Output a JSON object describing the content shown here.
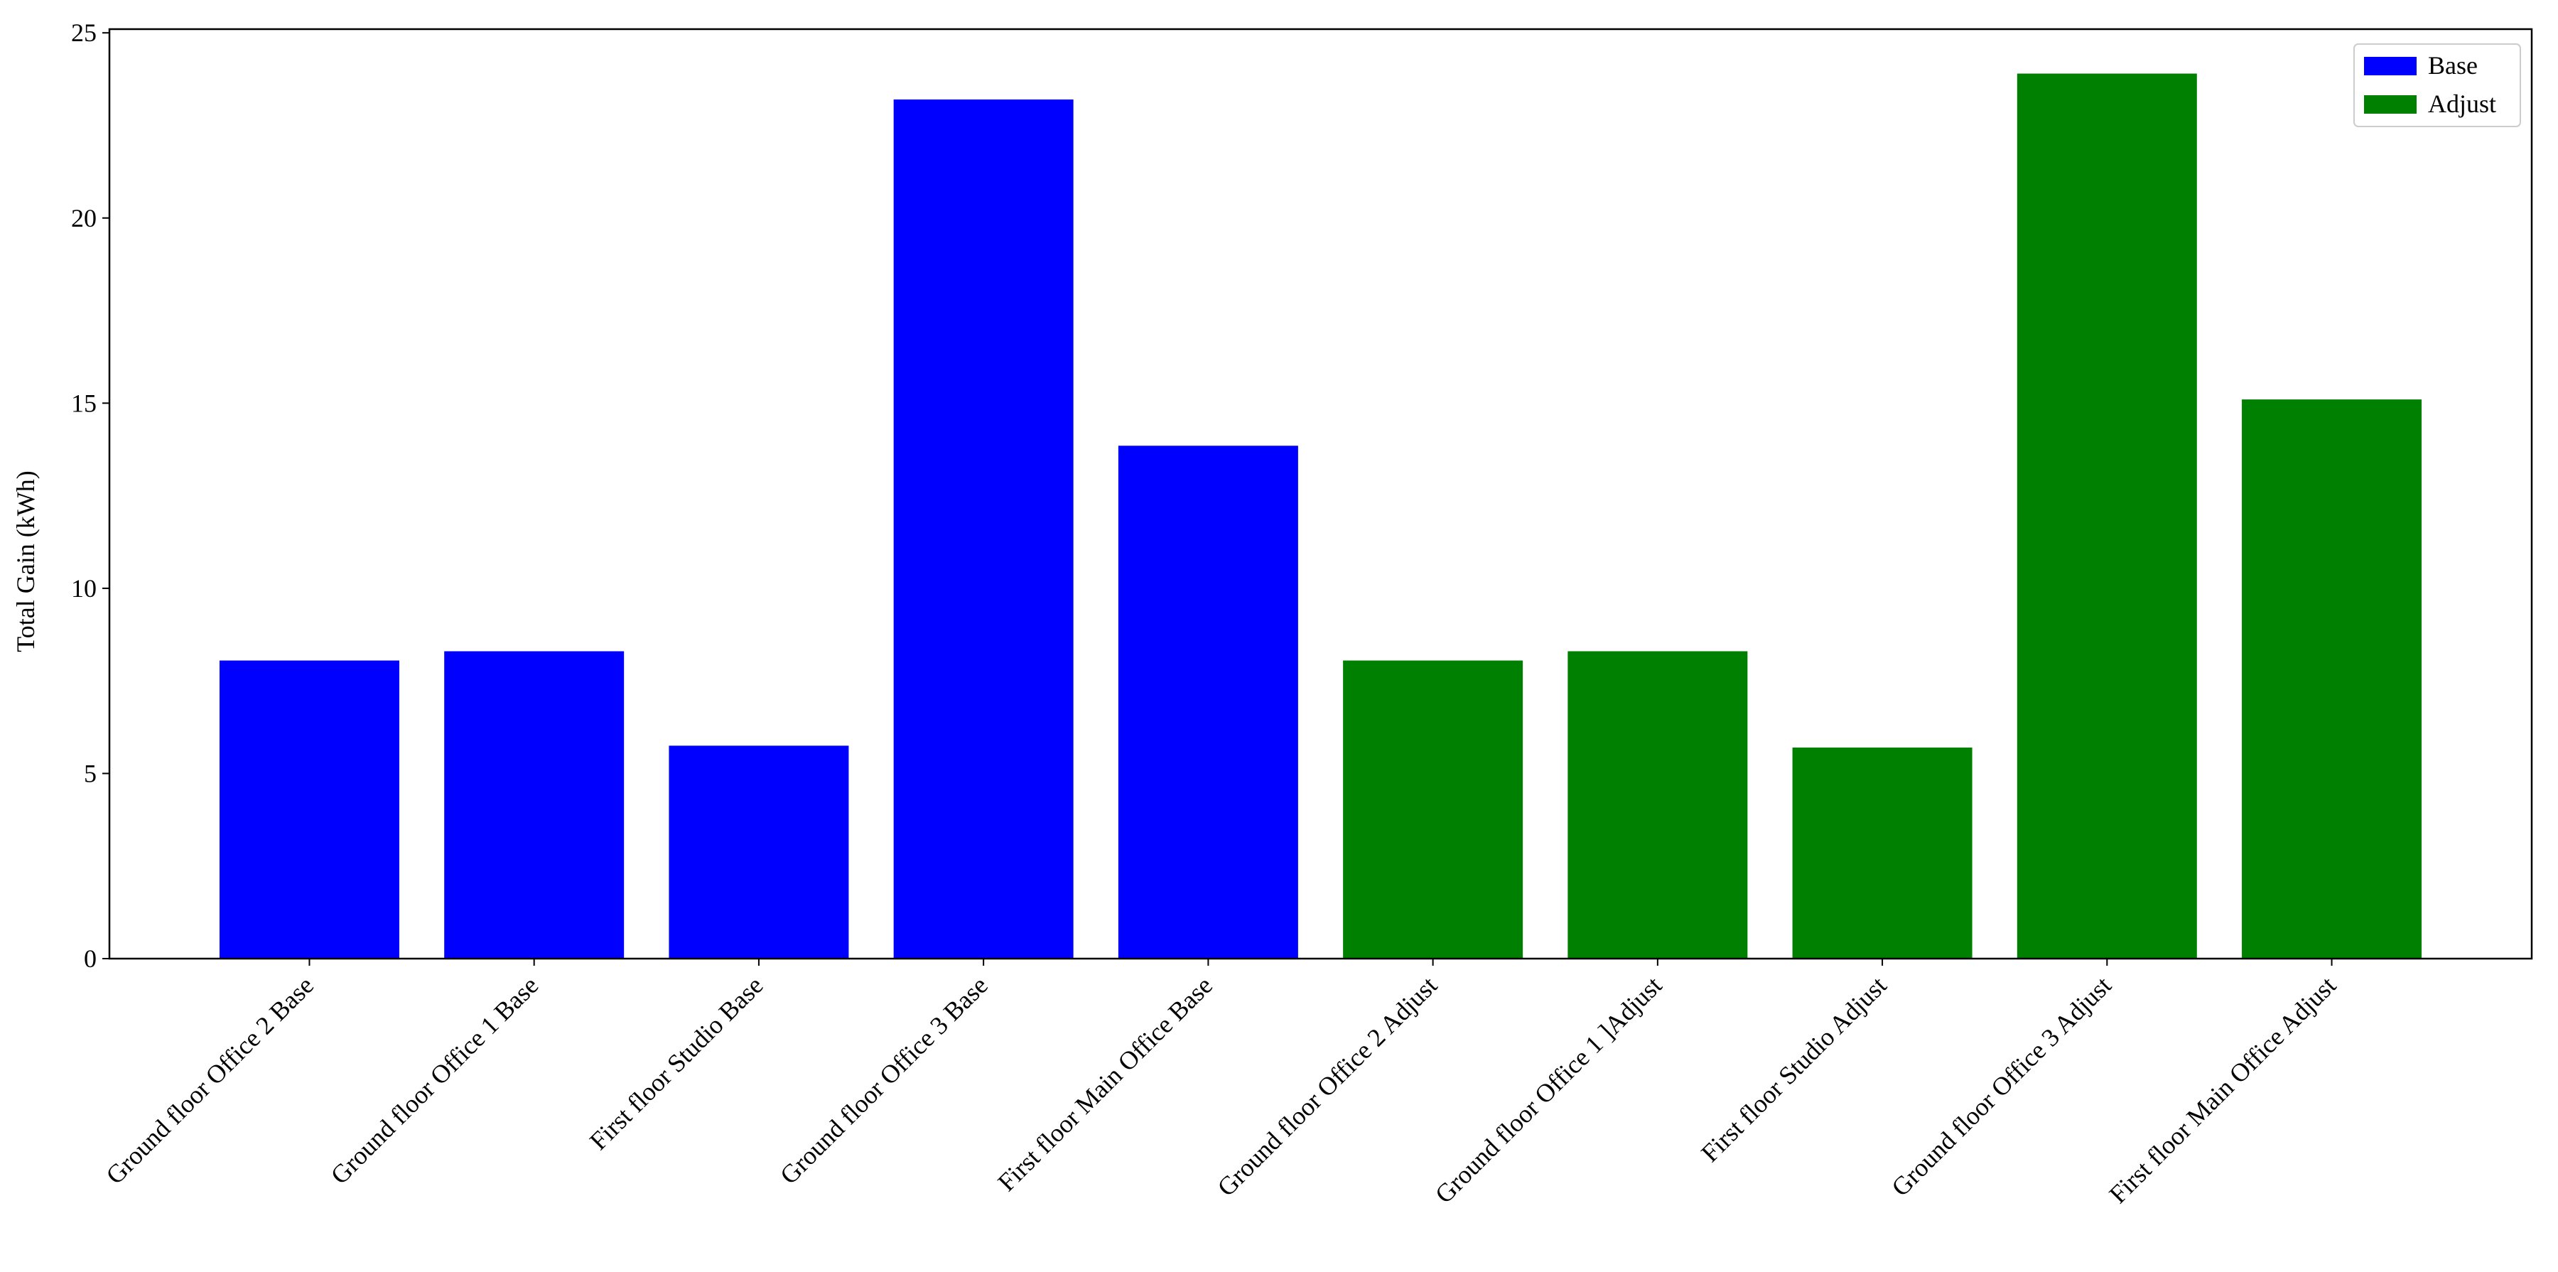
{
  "chart_data": {
    "type": "bar",
    "y_label": "Total Gain (kWh)",
    "categories": [
      "Ground floor Office 2 Base",
      "Ground floor Office 1 Base",
      "First floor Studio Base",
      "Ground floor Office 3 Base",
      "First floor Main Office Base",
      "Ground floor Office 2 Adjust",
      "Ground floor Office 1 ]Adjust",
      "First floor Studio Adjust",
      "Ground floor Office 3 Adjust",
      "First floor Main Office Adjust"
    ],
    "series": [
      {
        "name": "Base",
        "color": "#0000ff",
        "values": [
          8.05,
          8.3,
          5.75,
          23.2,
          13.85,
          null,
          null,
          null,
          null,
          null
        ]
      },
      {
        "name": "Adjust",
        "color": "#008000",
        "values": [
          null,
          null,
          null,
          null,
          null,
          8.05,
          8.3,
          5.7,
          23.9,
          15.1
        ]
      }
    ],
    "ylim": [
      0,
      25.1
    ],
    "yticks": [
      0,
      5,
      10,
      15,
      20,
      25
    ],
    "grid": false,
    "legend": "upper right"
  }
}
